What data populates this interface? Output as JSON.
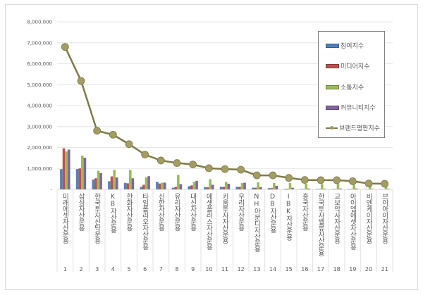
{
  "chart_data": {
    "type": "bar+line",
    "title": "",
    "xlabel": "",
    "ylabel": "",
    "ylim": [
      0,
      8000000
    ],
    "yticks": [
      "-",
      "1,000,000",
      "2,000,000",
      "3,000,000",
      "4,000,000",
      "5,000,000",
      "6,000,000",
      "7,000,000",
      "8,000,000"
    ],
    "grid": true,
    "legend_position": "right",
    "category_numbers": [
      "1",
      "2",
      "3",
      "4",
      "5",
      "6",
      "7",
      "8",
      "9",
      "10",
      "11",
      "12",
      "13",
      "14",
      "15",
      "16",
      "17",
      "18",
      "19",
      "20",
      "21"
    ],
    "categories": [
      "미래에셋자산운용",
      "삼성자산운용",
      "한국투자신탁운용",
      "KB자산운용",
      "한화자산운용",
      "타임폴리오자산운용",
      "신한자산운용",
      "유리자산운용",
      "대신자산운용",
      "에셋플러스자산운용",
      "키움투자자산운용",
      "우리자산운용",
      "NH아문디자산운용",
      "DB자산운용",
      "IBK자산운용",
      "흥국자산운용",
      "한국투자밸류자산운용",
      "교보악사자산운용",
      "아이엠에셋자산운용",
      "비엔케이자산운용",
      "브이아이자산운용"
    ],
    "series": [
      {
        "name": "참여지수",
        "type": "bar",
        "color": "#4f81bd",
        "values": [
          970000,
          970000,
          470000,
          390000,
          310000,
          120000,
          360000,
          80000,
          150000,
          100000,
          120000,
          120000,
          80000,
          60000,
          30000,
          20000,
          20000,
          20000,
          20000,
          10000,
          10000
        ]
      },
      {
        "name": "미디어지수",
        "type": "bar",
        "color": "#c0504d",
        "values": [
          1960000,
          1000000,
          530000,
          620000,
          290000,
          220000,
          280000,
          120000,
          190000,
          100000,
          120000,
          120000,
          80000,
          60000,
          30000,
          20000,
          20000,
          20000,
          20000,
          10000,
          10000
        ]
      },
      {
        "name": "소통지수",
        "type": "bar",
        "color": "#9bbb59",
        "values": [
          1810000,
          1610000,
          890000,
          930000,
          930000,
          580000,
          320000,
          690000,
          360000,
          490000,
          360000,
          300000,
          340000,
          300000,
          300000,
          270000,
          250000,
          270000,
          220000,
          200000,
          200000
        ]
      },
      {
        "name": "커뮤니티지수",
        "type": "bar",
        "color": "#8064a2",
        "values": [
          1900000,
          1510000,
          780000,
          570000,
          530000,
          630000,
          320000,
          250000,
          410000,
          220000,
          270000,
          320000,
          110000,
          170000,
          80000,
          40000,
          30000,
          40000,
          40000,
          20000,
          20000
        ]
      },
      {
        "name": "브랜드평판지수",
        "type": "line",
        "color": "#7f7a4a",
        "values": [
          6800000,
          5180000,
          2800000,
          2610000,
          2160000,
          1660000,
          1380000,
          1260000,
          1190000,
          1010000,
          970000,
          940000,
          670000,
          670000,
          550000,
          450000,
          440000,
          440000,
          390000,
          280000,
          270000
        ]
      }
    ]
  }
}
